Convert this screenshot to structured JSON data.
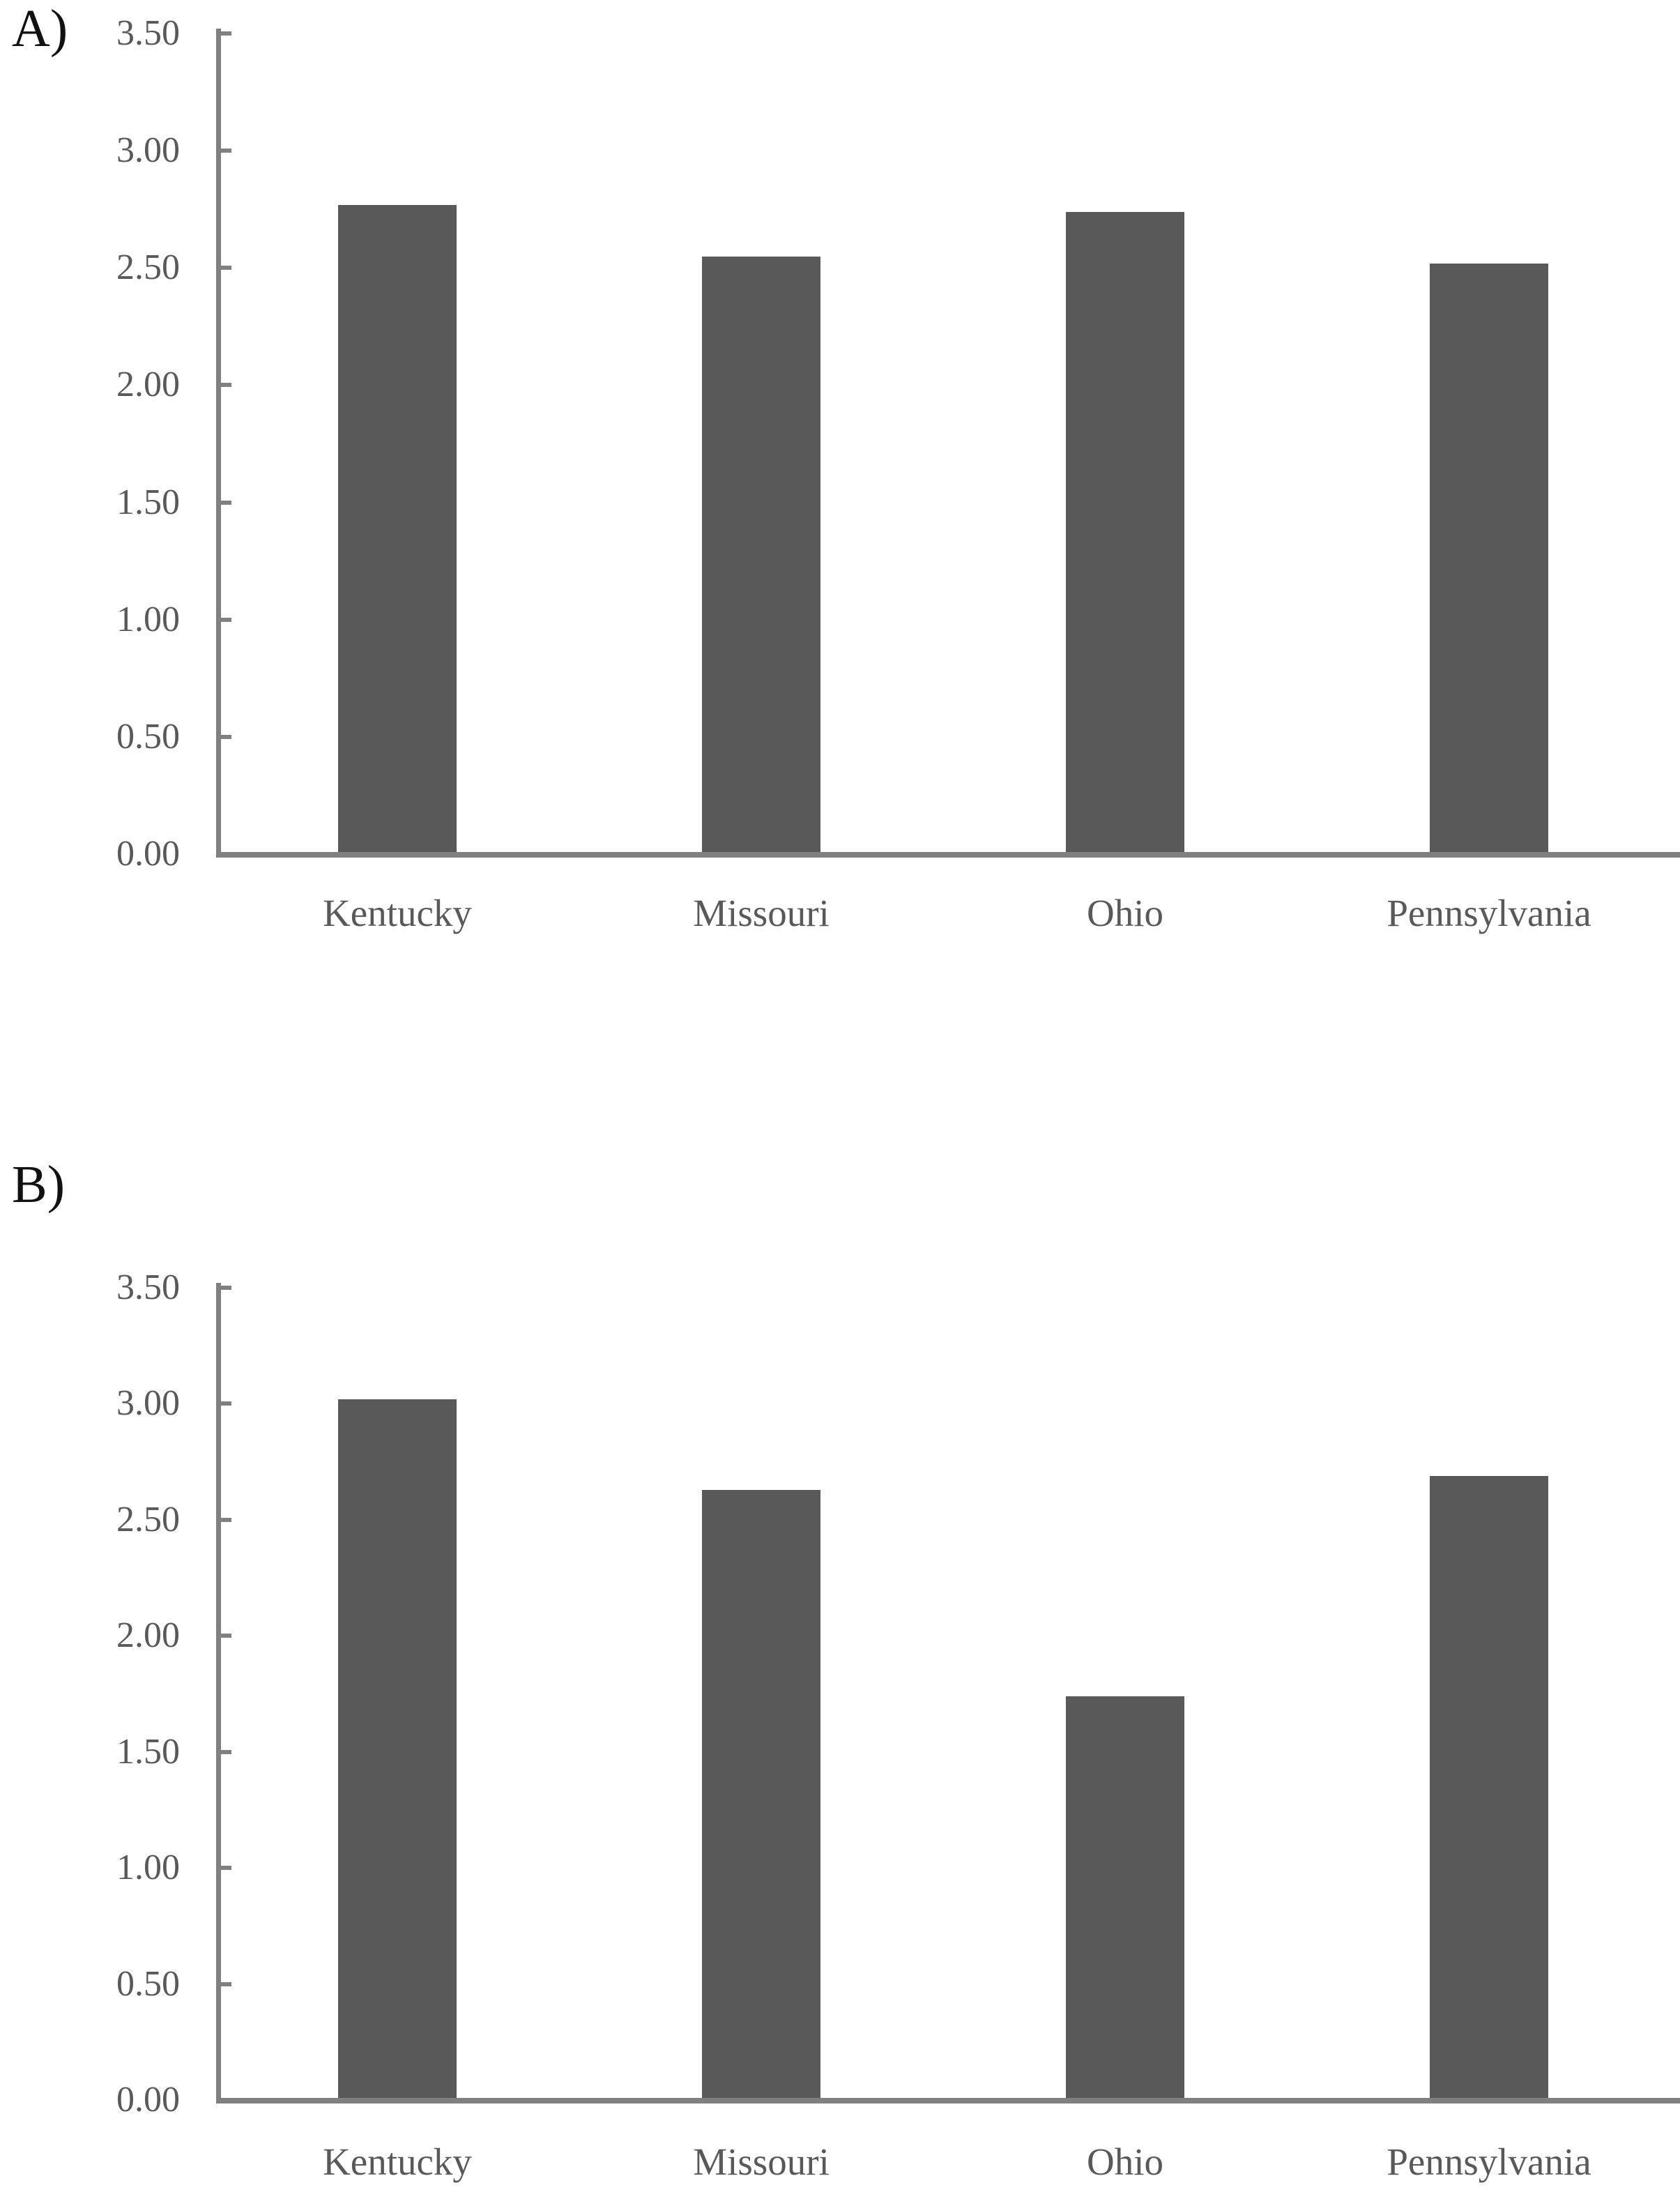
{
  "figure": {
    "background": "#ffffff",
    "bar_color": "#595959",
    "axis_color": "#808080",
    "text_color": "#595959",
    "panel_letter_color": "#111111"
  },
  "panels": [
    {
      "label": "A)"
    },
    {
      "label": "B)"
    }
  ],
  "chart_data": [
    {
      "type": "bar",
      "panel": "A)",
      "title": "",
      "xlabel": "",
      "ylabel": "",
      "categories": [
        "Kentucky",
        "Missouri",
        "Ohio",
        "Pennsylvania"
      ],
      "values": [
        2.76,
        2.54,
        2.73,
        2.51
      ],
      "ylim": [
        0,
        3.5
      ],
      "ytick_step": 0.5,
      "ytick_labels": [
        "0.00",
        "0.50",
        "1.00",
        "1.50",
        "2.00",
        "2.50",
        "3.00",
        "3.50"
      ],
      "grid": false,
      "legend": null,
      "bar_color": "#595959",
      "axis_color": "#808080"
    },
    {
      "type": "bar",
      "panel": "B)",
      "title": "",
      "xlabel": "",
      "ylabel": "",
      "categories": [
        "Kentucky",
        "Missouri",
        "Ohio",
        "Pennsylvania"
      ],
      "values": [
        3.01,
        2.62,
        1.73,
        2.68
      ],
      "ylim": [
        0,
        3.5
      ],
      "ytick_step": 0.5,
      "ytick_labels": [
        "0.00",
        "0.50",
        "1.00",
        "1.50",
        "2.00",
        "2.50",
        "3.00",
        "3.50"
      ],
      "grid": false,
      "legend": null,
      "bar_color": "#595959",
      "axis_color": "#808080"
    }
  ]
}
